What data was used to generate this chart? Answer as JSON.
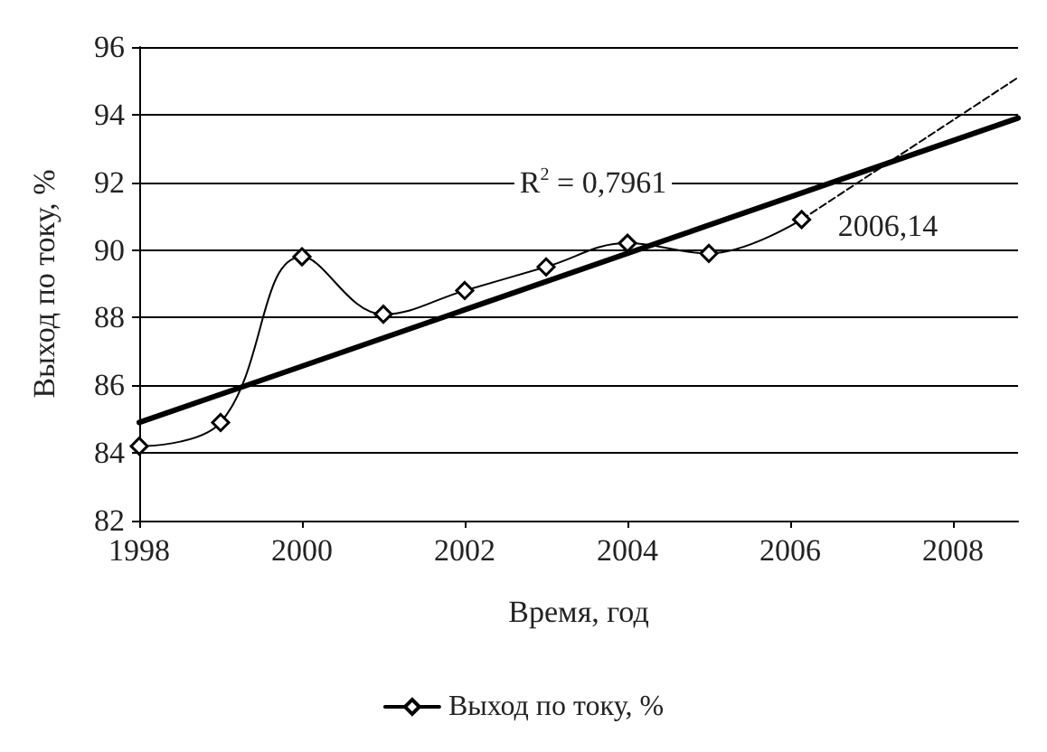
{
  "chart_data": {
    "type": "line",
    "xlabel": "Время, год",
    "ylabel": "Выход по току, %",
    "x": [
      1998,
      1999,
      2000,
      2001,
      2002,
      2003,
      2004,
      2005,
      2006.14
    ],
    "series": [
      {
        "name": "Выход по току, %",
        "color": "#000000",
        "marker": "diamond",
        "values": [
          84.2,
          84.9,
          89.8,
          88.1,
          88.8,
          89.5,
          90.2,
          89.9,
          90.9
        ]
      },
      {
        "type": "line",
        "color": "#000000",
        "x": [
          1998,
          2008.8
        ],
        "values": [
          84.9,
          93.9
        ],
        "marker": "none"
      },
      {
        "type": "line",
        "color": "#000000",
        "x": [
          2006.14,
          2008.8
        ],
        "values": [
          90.9,
          95.1
        ],
        "marker": "none",
        "line_style": "dashed"
      }
    ],
    "annotations": [
      "R$^{2}$ = 0,7961",
      "2006,14"
    ],
    "xlim": [
      1998,
      2008.8
    ],
    "xticks": [
      1998,
      2000,
      2002,
      2004,
      2006,
      2008
    ],
    "ylim": [
      82,
      96
    ],
    "yticks": [
      82,
      84,
      86,
      88,
      90,
      92,
      94,
      96
    ],
    "grid": "y",
    "legend": "bottom"
  }
}
